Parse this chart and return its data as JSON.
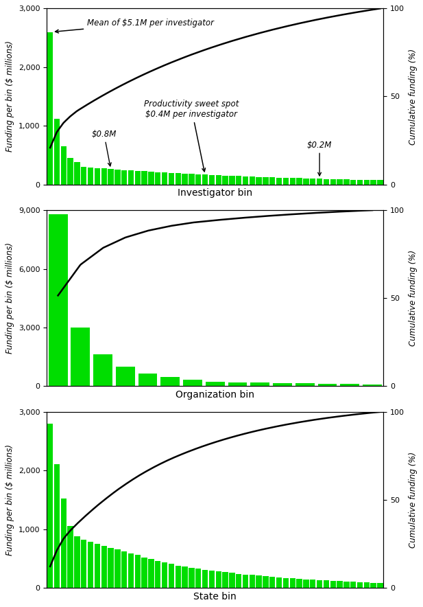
{
  "panel1": {
    "xlabel": "Investigator bin",
    "ylabel": "Funding per bin ($ millions)",
    "ylabel2": "Cumulative funding (%)",
    "ylim": [
      0,
      3000
    ],
    "ylim2": [
      0,
      100
    ],
    "yticks": [
      0,
      1000,
      2000,
      3000
    ],
    "yticks2": [
      0,
      50,
      100
    ],
    "n_bars": 50,
    "bar_peak": 2600,
    "bar_color": "#00dd00"
  },
  "panel2": {
    "xlabel": "Organization bin",
    "ylabel": "Funding per bin ($ millions)",
    "ylabel2": "Cumulative funding (%)",
    "ylim": [
      0,
      9000
    ],
    "ylim2": [
      0,
      100
    ],
    "yticks": [
      0,
      3000,
      6000,
      9000
    ],
    "yticks2": [
      0,
      50,
      100
    ],
    "n_bars": 15,
    "bar_peak": 8800,
    "bar_color": "#00dd00"
  },
  "panel3": {
    "xlabel": "State bin",
    "ylabel": "Funding per bin ($ millions)",
    "ylabel2": "Cumulative funding (%)",
    "ylim": [
      0,
      3000
    ],
    "ylim2": [
      0,
      100
    ],
    "yticks": [
      0,
      1000,
      2000,
      3000
    ],
    "yticks2": [
      0,
      50,
      100
    ],
    "n_bars": 50,
    "bar_peak": 2800,
    "bar_color": "#00dd00"
  }
}
